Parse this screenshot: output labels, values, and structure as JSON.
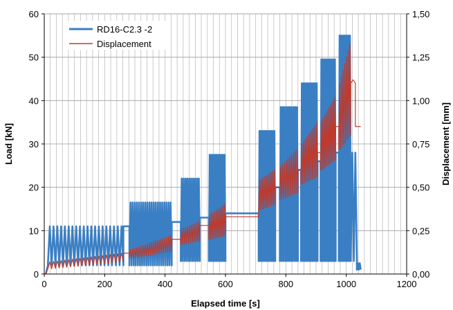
{
  "chart_data": {
    "type": "line",
    "xlabel": "Elapsed time [s]",
    "ylabel_left": "Load [kN]",
    "ylabel_right": "Displacement [mm]",
    "xlim": [
      0,
      1200
    ],
    "ylim_left": [
      0,
      60
    ],
    "ylim_right": [
      0,
      1.5
    ],
    "x_ticks": [
      "0",
      "200",
      "400",
      "600",
      "800",
      "1000",
      "1200"
    ],
    "y_left_ticks": [
      "0",
      "10",
      "20",
      "30",
      "40",
      "50",
      "60"
    ],
    "y_right_ticks": [
      "0,00",
      "0,25",
      "0,50",
      "0,75",
      "1,00",
      "1,25",
      "1,50"
    ],
    "grid": true,
    "legend_position": "top-left",
    "series": [
      {
        "name": "RD16-C2.3 -2",
        "axis": "left",
        "color": "#3a7fc4",
        "blocks": [
          {
            "t_start": 5,
            "t_end": 12,
            "base": 0,
            "kind": "ramp"
          },
          {
            "t_start": 12,
            "t_end": 262,
            "lo": 2,
            "hi": 11,
            "cycles": 20
          },
          {
            "t_start": 262,
            "t_end": 282,
            "base": 11,
            "kind": "hold"
          },
          {
            "t_start": 282,
            "t_end": 422,
            "lo": 2,
            "hi": 16.5,
            "cycles": 20
          },
          {
            "t_start": 422,
            "t_end": 452,
            "base": 12,
            "kind": "hold"
          },
          {
            "t_start": 452,
            "t_end": 515,
            "lo": 3,
            "hi": 22,
            "cycles": 10
          },
          {
            "t_start": 515,
            "t_end": 545,
            "base": 13,
            "kind": "hold"
          },
          {
            "t_start": 545,
            "t_end": 600,
            "lo": 3,
            "hi": 27.5,
            "cycles": 10
          },
          {
            "t_start": 600,
            "t_end": 710,
            "base": 14,
            "kind": "hold"
          },
          {
            "t_start": 710,
            "t_end": 765,
            "lo": 3,
            "hi": 33,
            "cycles": 10
          },
          {
            "t_start": 765,
            "t_end": 780,
            "base": 20,
            "kind": "hold"
          },
          {
            "t_start": 780,
            "t_end": 840,
            "lo": 3,
            "hi": 38.5,
            "cycles": 10
          },
          {
            "t_start": 840,
            "t_end": 850,
            "base": 24,
            "kind": "hold"
          },
          {
            "t_start": 850,
            "t_end": 905,
            "lo": 3,
            "hi": 44,
            "cycles": 10
          },
          {
            "t_start": 905,
            "t_end": 915,
            "base": 26,
            "kind": "hold"
          },
          {
            "t_start": 915,
            "t_end": 965,
            "lo": 3,
            "hi": 49.5,
            "cycles": 10
          },
          {
            "t_start": 965,
            "t_end": 975,
            "base": 28,
            "kind": "hold"
          },
          {
            "t_start": 975,
            "t_end": 1015,
            "lo": 3,
            "hi": 55,
            "cycles": 7
          },
          {
            "t_start": 1015,
            "t_end": 1035,
            "lo": 3,
            "hi": 28,
            "cycles": 2
          },
          {
            "t_start": 1035,
            "t_end": 1048,
            "lo": 1,
            "hi": 2.5,
            "cycles": 2
          }
        ]
      },
      {
        "name": "Displacement",
        "axis": "right",
        "color": "#c0392b",
        "blocks": [
          {
            "t_start": 5,
            "t_end": 12,
            "base": 0,
            "kind": "ramp"
          },
          {
            "t_start": 12,
            "t_end": 262,
            "lo_start": 0.03,
            "lo_end": 0.07,
            "hi_start": 0.07,
            "hi_end": 0.12,
            "cycles": 20
          },
          {
            "t_start": 262,
            "t_end": 282,
            "base": 0.12,
            "kind": "hold"
          },
          {
            "t_start": 282,
            "t_end": 422,
            "lo_start": 0.09,
            "lo_end": 0.13,
            "hi_start": 0.14,
            "hi_end": 0.22,
            "cycles": 20
          },
          {
            "t_start": 422,
            "t_end": 452,
            "base": 0.2,
            "kind": "hold"
          },
          {
            "t_start": 452,
            "t_end": 515,
            "lo_start": 0.17,
            "lo_end": 0.19,
            "hi_start": 0.26,
            "hi_end": 0.3,
            "cycles": 10
          },
          {
            "t_start": 515,
            "t_end": 545,
            "base": 0.28,
            "kind": "hold"
          },
          {
            "t_start": 545,
            "t_end": 600,
            "lo_start": 0.2,
            "lo_end": 0.22,
            "hi_start": 0.34,
            "hi_end": 0.4,
            "cycles": 10
          },
          {
            "t_start": 600,
            "t_end": 710,
            "base": 0.33,
            "kind": "hold"
          },
          {
            "t_start": 710,
            "t_end": 765,
            "lo_start": 0.37,
            "lo_end": 0.4,
            "hi_start": 0.54,
            "hi_end": 0.6,
            "cycles": 10
          },
          {
            "t_start": 765,
            "t_end": 780,
            "base": 0.5,
            "kind": "hold"
          },
          {
            "t_start": 780,
            "t_end": 840,
            "lo_start": 0.43,
            "lo_end": 0.47,
            "hi_start": 0.62,
            "hi_end": 0.72,
            "cycles": 10
          },
          {
            "t_start": 840,
            "t_end": 850,
            "base": 0.6,
            "kind": "hold"
          },
          {
            "t_start": 850,
            "t_end": 905,
            "lo_start": 0.52,
            "lo_end": 0.56,
            "hi_start": 0.75,
            "hi_end": 0.87,
            "cycles": 10
          },
          {
            "t_start": 905,
            "t_end": 915,
            "base": 0.7,
            "kind": "hold"
          },
          {
            "t_start": 915,
            "t_end": 965,
            "lo_start": 0.6,
            "lo_end": 0.66,
            "hi_start": 0.88,
            "hi_end": 1.02,
            "cycles": 10
          },
          {
            "t_start": 965,
            "t_end": 975,
            "base": 0.85,
            "kind": "hold"
          },
          {
            "t_start": 975,
            "t_end": 1015,
            "lo_start": 0.72,
            "lo_end": 0.8,
            "hi_start": 1.1,
            "hi_end": 1.33,
            "cycles": 7
          },
          {
            "t_start": 1015,
            "t_end": 1030,
            "lo_start": 1.1,
            "lo_end": 1.1,
            "hi_start": 1.12,
            "hi_end": 1.12,
            "cycles": 1
          },
          {
            "t_start": 1030,
            "t_end": 1048,
            "base": 0.85,
            "kind": "hold"
          }
        ]
      }
    ]
  }
}
